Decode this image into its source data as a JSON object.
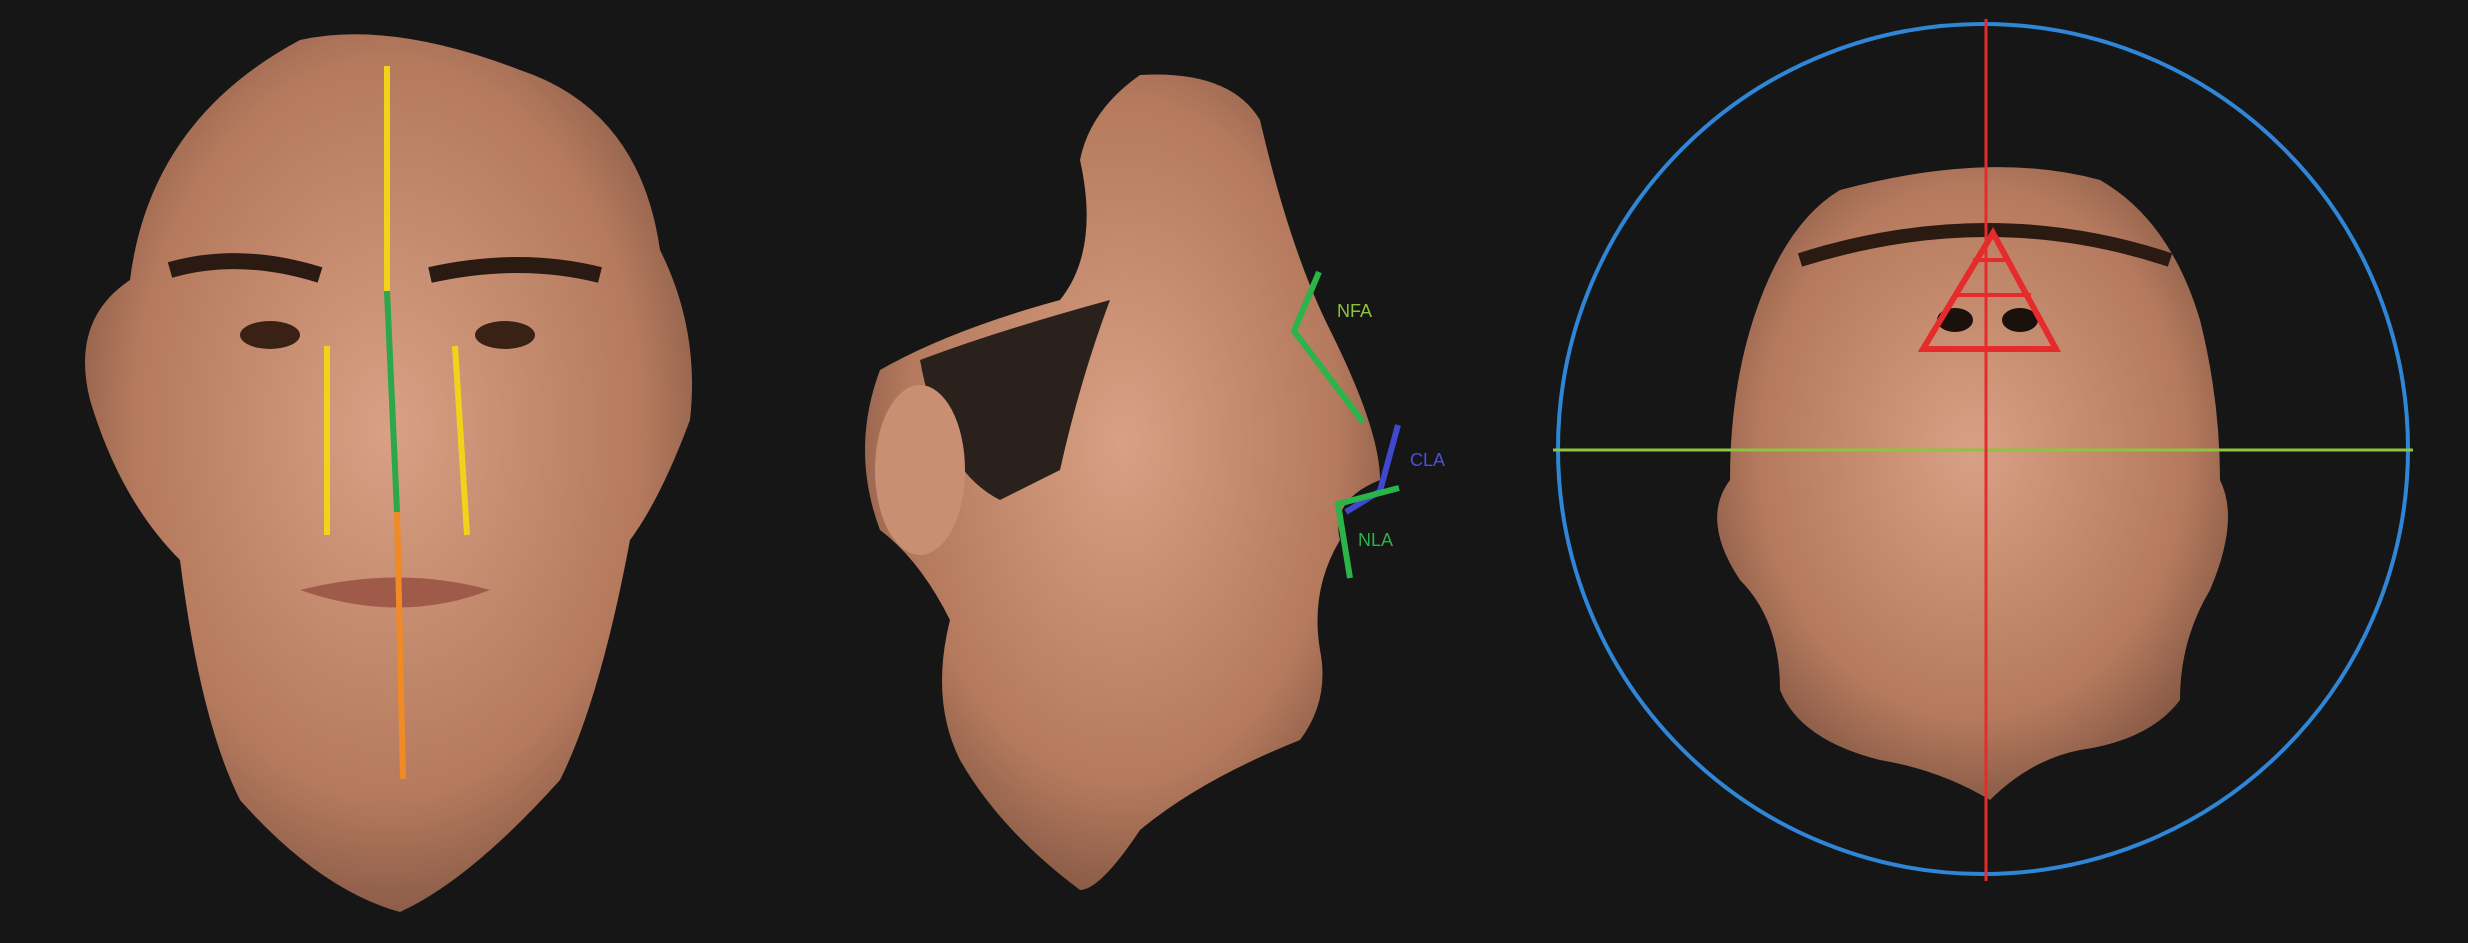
{
  "annotations": {
    "nfa": "NFA",
    "cla": "CLA",
    "nla": "NLA"
  }
}
